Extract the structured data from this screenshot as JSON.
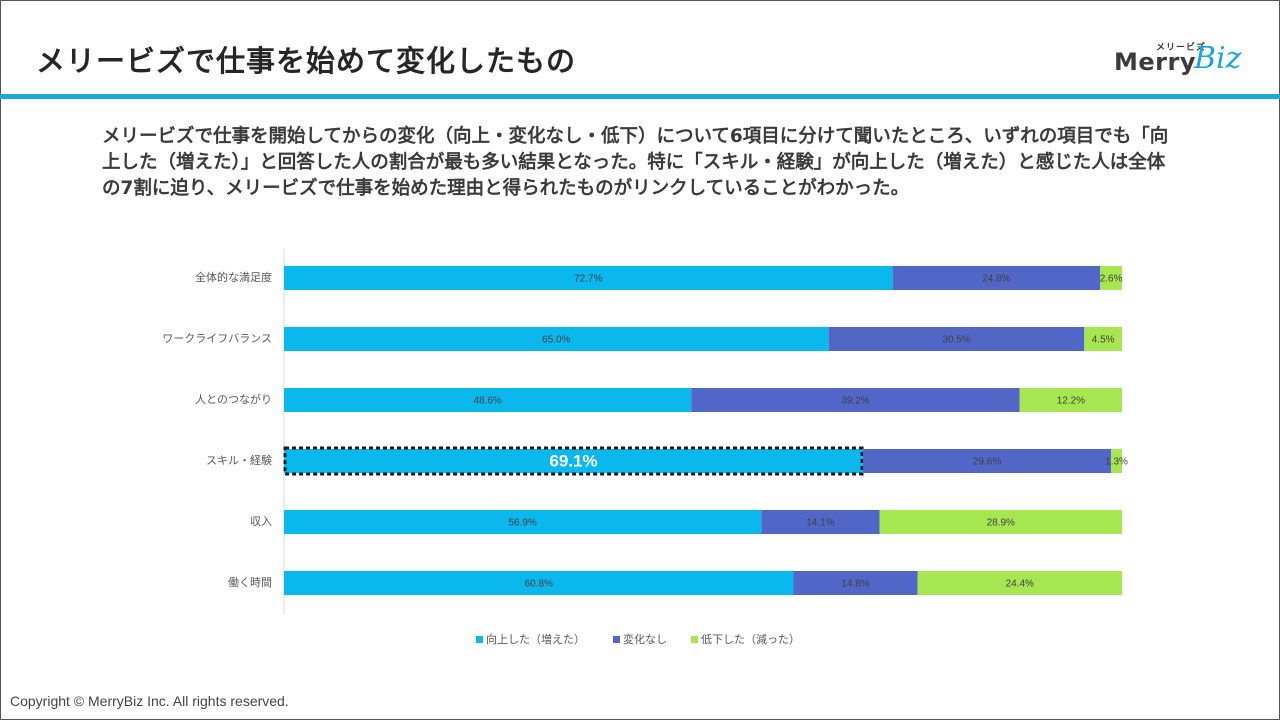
{
  "header": {
    "title": "メリービズで仕事を始めて変化したもの",
    "logo": {
      "small": "メリービズ",
      "merry": "Merry",
      "biz": "Biz"
    }
  },
  "summary": "メリービズで仕事を開始してからの変化（向上・変化なし・低下）について6項目に分けて聞いたところ、いずれの項目でも「向上した（増えた）」と回答した人の割合が最も多い結果となった。特に「スキル・経験」が向上した（増えた）と感じた人は全体の7割に迫り、メリービズで仕事を始めた理由と得られたものがリンクしていることがわかった。",
  "footer": {
    "copyright": "Copyright © MerryBiz Inc. All rights reserved."
  },
  "chart_data": {
    "type": "bar",
    "orientation": "horizontal",
    "stacked": "100%",
    "categories": [
      "全体的な満足度",
      "ワークライフバランス",
      "人とのつながり",
      "スキル・経験",
      "収入",
      "働く時間"
    ],
    "series": [
      {
        "name": "向上した（増えた）",
        "color": "#0ab8ee",
        "values": [
          72.7,
          65.0,
          48.6,
          69.1,
          56.9,
          60.8
        ]
      },
      {
        "name": "変化なし",
        "color": "#5266c8",
        "values": [
          24.8,
          30.5,
          39.2,
          29.6,
          14.1,
          14.8
        ]
      },
      {
        "name": "低下した（減った）",
        "color": "#a6e650",
        "values": [
          2.6,
          4.5,
          12.2,
          1.3,
          28.9,
          24.4
        ]
      }
    ],
    "data_labels": [
      [
        "72.7%",
        "24.8%",
        "2.6%"
      ],
      [
        "65.0%",
        "30.5%",
        "4.5%"
      ],
      [
        "48.6%",
        "39.2%",
        "12.2%"
      ],
      [
        "69.1%",
        "29.6%",
        "1.3%"
      ],
      [
        "56.9%",
        "14.1%",
        "28.9%"
      ],
      [
        "60.8%",
        "14.8%",
        "24.4%"
      ]
    ],
    "highlight": {
      "category": "スキル・経験",
      "series": "向上した（増えた）"
    },
    "xlim": [
      0,
      100
    ],
    "grid": false,
    "legend": "bottom"
  }
}
